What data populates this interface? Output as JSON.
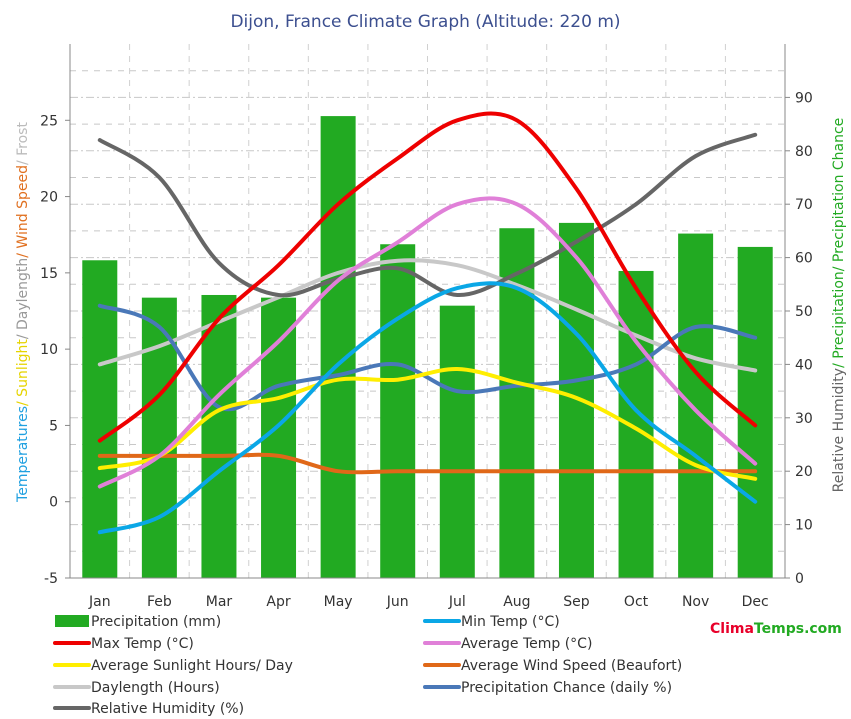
{
  "chart_data": {
    "type": "bar",
    "title": "Dijon, France Climate Graph (Altitude: 220 m)",
    "categories": [
      "Jan",
      "Feb",
      "Mar",
      "Apr",
      "May",
      "Jun",
      "Jul",
      "Aug",
      "Sep",
      "Oct",
      "Nov",
      "Dec"
    ],
    "y_left": {
      "range": [
        -5,
        30
      ],
      "ticks": [
        -5,
        0,
        5,
        10,
        15,
        20,
        25
      ],
      "label_parts": [
        {
          "text": "Temperatures",
          "color": "#1fa0e0"
        },
        {
          "text": "/ Sunlight",
          "color": "#e6d400"
        },
        {
          "text": "/ Daylength",
          "color": "#999999"
        },
        {
          "text": "/ Wind Speed",
          "color": "#e07020"
        },
        {
          "text": "/ Frost",
          "color": "#bbbbbb"
        }
      ]
    },
    "y_right": {
      "range": [
        0,
        100
      ],
      "ticks": [
        0,
        10,
        20,
        30,
        40,
        50,
        60,
        70,
        80,
        90
      ],
      "label_parts": [
        {
          "text": "Relative Humidity",
          "color": "#666666"
        },
        {
          "text": "/ Precipitation",
          "color": "#22aa22"
        },
        {
          "text": "/ Precipitation Chance",
          "color": "#22aa22"
        }
      ]
    },
    "series": [
      {
        "name": "Precipitation (mm)",
        "kind": "bar",
        "axis": "right",
        "color": "#22aa22",
        "values": [
          59.5,
          52.5,
          53,
          52.5,
          86.5,
          62.5,
          51,
          65.5,
          66.5,
          57.5,
          64.5,
          62
        ]
      },
      {
        "name": "Min Temp (°C)",
        "kind": "line",
        "axis": "left",
        "color": "#0aa7e6",
        "values": [
          -2,
          -1,
          2,
          5,
          9,
          12,
          14,
          14,
          11,
          6,
          3,
          0
        ]
      },
      {
        "name": "Max Temp (°C)",
        "kind": "line",
        "axis": "left",
        "color": "#ee0000",
        "values": [
          4,
          7,
          12,
          15.5,
          19.5,
          22.5,
          25,
          25,
          20.5,
          14,
          8.5,
          5
        ]
      },
      {
        "name": "Average Temp (°C)",
        "kind": "line",
        "axis": "left",
        "color": "#e080d8",
        "values": [
          1,
          3,
          7,
          10.5,
          14.5,
          17,
          19.5,
          19.5,
          16,
          10.5,
          6,
          2.5
        ]
      },
      {
        "name": "Average Sunlight Hours/ Day",
        "kind": "line",
        "axis": "left",
        "color": "#ffee00",
        "values": [
          2.2,
          3,
          6,
          6.8,
          8,
          8,
          8.7,
          7.8,
          6.8,
          4.8,
          2.4,
          1.5
        ]
      },
      {
        "name": "Average Wind Speed (Beaufort)",
        "kind": "line",
        "axis": "left",
        "color": "#e06818",
        "values": [
          3,
          3,
          3,
          3,
          2,
          2,
          2,
          2,
          2,
          2,
          2,
          2
        ]
      },
      {
        "name": "Daylength (Hours)",
        "kind": "line",
        "axis": "left",
        "color": "#c8c8c8",
        "values": [
          9,
          10.2,
          11.8,
          13.4,
          15,
          15.8,
          15.5,
          14.2,
          12.6,
          10.9,
          9.4,
          8.6
        ]
      },
      {
        "name": "Precipitation Chance (daily %)",
        "kind": "line",
        "axis": "right",
        "color": "#4a78b8",
        "values": [
          51,
          47,
          32,
          36,
          38,
          40,
          35,
          36,
          37,
          40,
          47,
          45
        ]
      },
      {
        "name": "Relative Humidity (%)",
        "kind": "line",
        "axis": "right",
        "color": "#666666",
        "values": [
          82,
          75,
          59,
          53,
          56,
          58,
          53,
          57,
          63,
          70,
          79,
          83
        ]
      }
    ],
    "legend_placement": "bottom",
    "grid": true
  },
  "brand": {
    "part1": "Clima",
    "part2": "Temps",
    "part3": ".com",
    "color1": "#e8002a",
    "color2": "#22aa22"
  }
}
